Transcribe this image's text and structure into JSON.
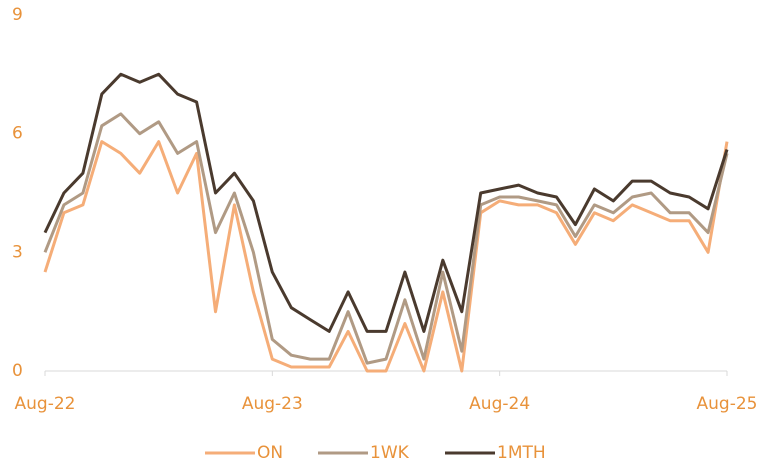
{
  "chart_data": {
    "type": "line",
    "x": [
      "Aug-22",
      "Sep-22",
      "Oct-22",
      "Nov-22",
      "Dec-22",
      "Jan-23",
      "Feb-23",
      "Mar-23",
      "Apr-23",
      "May-23",
      "Jun-23",
      "Jul-23",
      "Aug-23",
      "Sep-23",
      "Oct-23",
      "Nov-23",
      "Dec-23",
      "Jan-24",
      "Feb-24",
      "Mar-24",
      "Apr-24",
      "May-24",
      "Jun-24",
      "Jul-24",
      "Aug-24",
      "Sep-24",
      "Oct-24",
      "Nov-24",
      "Dec-24",
      "Jan-25",
      "Feb-25",
      "Mar-25",
      "Apr-25",
      "May-25",
      "Jun-25",
      "Jul-25",
      "Aug-25"
    ],
    "xticks": [
      "Aug-22",
      "Aug-23",
      "Aug-24",
      "Aug-25"
    ],
    "ylim": [
      0,
      9
    ],
    "yticks": [
      0,
      3,
      6,
      9
    ],
    "legend": "bottom",
    "series": [
      {
        "name": "ON",
        "color": "#f5ad78",
        "values": [
          2.5,
          4.0,
          4.2,
          5.8,
          5.5,
          5.0,
          5.8,
          4.5,
          5.5,
          1.5,
          4.2,
          2.0,
          0.3,
          0.1,
          0.1,
          0.1,
          1.0,
          0,
          0,
          1.2,
          0,
          2.0,
          0,
          4.0,
          4.3,
          4.2,
          4.2,
          4.0,
          3.2,
          4.0,
          3.8,
          4.2,
          4.0,
          3.8,
          3.8,
          3.0,
          5.8
        ]
      },
      {
        "name": "1WK",
        "color": "#b09a84",
        "values": [
          3.0,
          4.2,
          4.5,
          6.2,
          6.5,
          6.0,
          6.3,
          5.5,
          5.8,
          3.5,
          4.5,
          3.0,
          0.8,
          0.4,
          0.3,
          0.3,
          1.5,
          0.2,
          0.3,
          1.8,
          0.3,
          2.5,
          0.5,
          4.2,
          4.4,
          4.4,
          4.3,
          4.2,
          3.4,
          4.2,
          4.0,
          4.4,
          4.5,
          4.0,
          4.0,
          3.5,
          5.5
        ]
      },
      {
        "name": "1MTH",
        "color": "#4a3a2e",
        "values": [
          3.5,
          4.5,
          5.0,
          7.0,
          7.5,
          7.3,
          7.5,
          7.0,
          6.8,
          4.5,
          5.0,
          4.3,
          2.5,
          1.6,
          1.3,
          1.0,
          2.0,
          1.0,
          1.0,
          2.5,
          1.0,
          2.8,
          1.5,
          4.5,
          4.6,
          4.7,
          4.5,
          4.4,
          3.7,
          4.6,
          4.3,
          4.8,
          4.8,
          4.5,
          4.4,
          4.1,
          5.6
        ]
      }
    ]
  }
}
